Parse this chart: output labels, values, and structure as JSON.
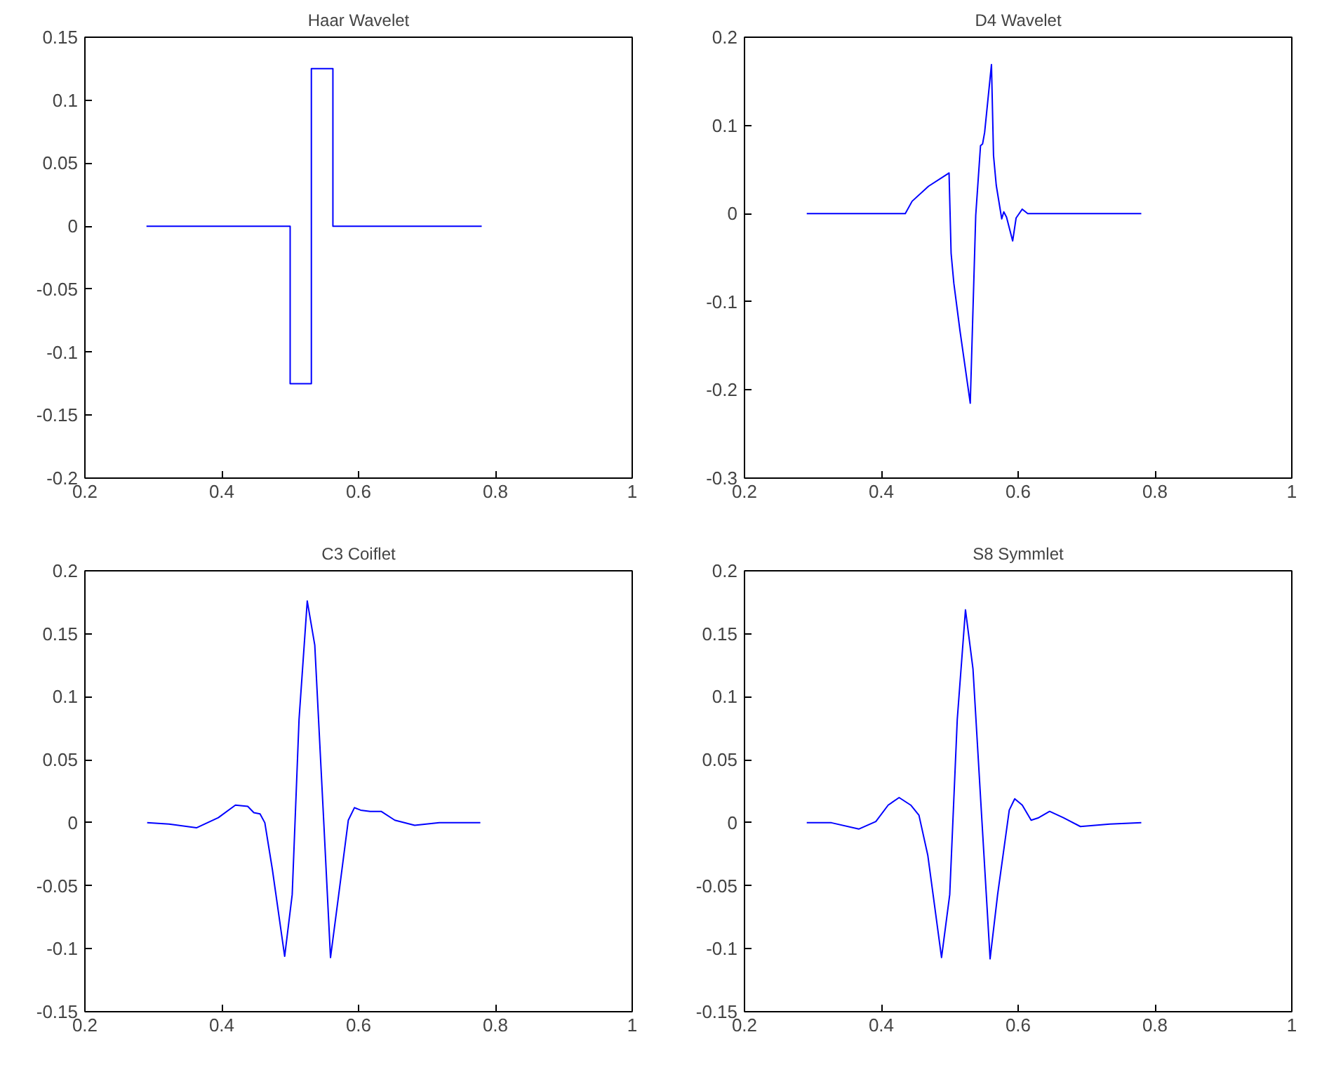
{
  "chart_data": [
    {
      "type": "line",
      "title": "Haar Wavelet",
      "xlim": [
        0.2,
        1
      ],
      "xticks": [
        0.2,
        0.4,
        0.6,
        0.8,
        1
      ],
      "ylim": [
        -0.2,
        0.15
      ],
      "yticks": [
        -0.2,
        -0.15,
        -0.1,
        -0.05,
        0,
        0.05,
        0.1,
        0.15
      ],
      "grid": false,
      "series": [
        {
          "color": "#0000ff",
          "x": [
            0.29,
            0.5,
            0.5,
            0.531,
            0.531,
            0.5625,
            0.5625,
            0.78
          ],
          "values": [
            0,
            0,
            -0.125,
            -0.125,
            0.125,
            0.125,
            0,
            0
          ]
        }
      ]
    },
    {
      "type": "line",
      "title": "D4 Wavelet",
      "xlim": [
        0.2,
        1
      ],
      "xticks": [
        0.2,
        0.4,
        0.6,
        0.8,
        1
      ],
      "ylim": [
        -0.3,
        0.2
      ],
      "yticks": [
        -0.3,
        -0.2,
        -0.1,
        0,
        0.1,
        0.2
      ],
      "grid": false,
      "series": [
        {
          "color": "#0000ff",
          "x": [
            0.291,
            0.435,
            0.445,
            0.469,
            0.499,
            0.502,
            0.506,
            0.515,
            0.53,
            0.538,
            0.545,
            0.548,
            0.551,
            0.561,
            0.564,
            0.568,
            0.576,
            0.579,
            0.583,
            0.592,
            0.597,
            0.606,
            0.614,
            0.78
          ],
          "values": [
            0,
            0,
            0.014,
            0.031,
            0.046,
            -0.045,
            -0.079,
            -0.133,
            -0.215,
            -0.002,
            0.077,
            0.079,
            0.092,
            0.169,
            0.066,
            0.032,
            -0.006,
            0.002,
            -0.004,
            -0.031,
            -0.005,
            0.005,
            0,
            0
          ]
        }
      ]
    },
    {
      "type": "line",
      "title": "C3 Coiflet",
      "xlim": [
        0.2,
        1
      ],
      "xticks": [
        0.2,
        0.4,
        0.6,
        0.8,
        1
      ],
      "ylim": [
        -0.15,
        0.2
      ],
      "yticks": [
        -0.15,
        -0.1,
        -0.05,
        0,
        0.05,
        0.1,
        0.15,
        0.2
      ],
      "grid": false,
      "series": [
        {
          "color": "#0000ff",
          "x": [
            0.291,
            0.323,
            0.363,
            0.395,
            0.42,
            0.438,
            0.447,
            0.456,
            0.463,
            0.474,
            0.492,
            0.503,
            0.513,
            0.525,
            0.536,
            0.549,
            0.559,
            0.571,
            0.585,
            0.594,
            0.603,
            0.617,
            0.633,
            0.653,
            0.682,
            0.718,
            0.778
          ],
          "values": [
            0,
            -0.001,
            -0.004,
            0.004,
            0.014,
            0.013,
            0.008,
            0.007,
            0,
            -0.037,
            -0.106,
            -0.057,
            0.082,
            0.176,
            0.141,
            0.002,
            -0.107,
            -0.057,
            0.002,
            0.012,
            0.01,
            0.009,
            0.009,
            0.002,
            -0.002,
            0,
            0
          ]
        }
      ]
    },
    {
      "type": "line",
      "title": "S8 Symmlet",
      "xlim": [
        0.2,
        1
      ],
      "xticks": [
        0.2,
        0.4,
        0.6,
        0.8,
        1
      ],
      "ylim": [
        -0.15,
        0.2
      ],
      "yticks": [
        -0.15,
        -0.1,
        -0.05,
        0,
        0.05,
        0.1,
        0.15,
        0.2
      ],
      "grid": false,
      "series": [
        {
          "color": "#0000ff",
          "x": [
            0.291,
            0.327,
            0.367,
            0.392,
            0.41,
            0.426,
            0.443,
            0.455,
            0.468,
            0.488,
            0.5,
            0.511,
            0.523,
            0.534,
            0.547,
            0.559,
            0.57,
            0.587,
            0.595,
            0.606,
            0.619,
            0.63,
            0.646,
            0.666,
            0.691,
            0.734,
            0.78
          ],
          "values": [
            0,
            0,
            -0.005,
            0.001,
            0.014,
            0.02,
            0.014,
            0.006,
            -0.026,
            -0.107,
            -0.057,
            0.082,
            0.169,
            0.122,
            0.002,
            -0.108,
            -0.057,
            0.01,
            0.019,
            0.014,
            0.002,
            0.004,
            0.009,
            0.004,
            -0.003,
            -0.001,
            0
          ]
        }
      ]
    }
  ]
}
